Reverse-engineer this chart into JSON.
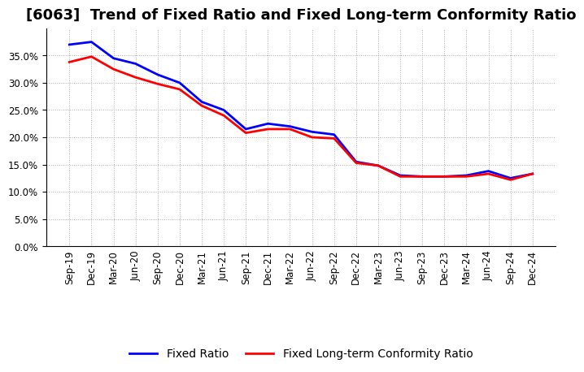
{
  "title": "[6063]  Trend of Fixed Ratio and Fixed Long-term Conformity Ratio",
  "x_labels": [
    "Sep-19",
    "Dec-19",
    "Mar-20",
    "Jun-20",
    "Sep-20",
    "Dec-20",
    "Mar-21",
    "Jun-21",
    "Sep-21",
    "Dec-21",
    "Mar-22",
    "Jun-22",
    "Sep-22",
    "Dec-22",
    "Mar-23",
    "Jun-23",
    "Sep-23",
    "Dec-23",
    "Mar-24",
    "Jun-24",
    "Sep-24",
    "Dec-24"
  ],
  "fixed_ratio": [
    0.37,
    0.375,
    0.345,
    0.335,
    0.315,
    0.3,
    0.265,
    0.25,
    0.215,
    0.225,
    0.22,
    0.21,
    0.205,
    0.155,
    0.148,
    0.13,
    0.128,
    0.128,
    0.13,
    0.138,
    0.125,
    0.133
  ],
  "fixed_lt_ratio": [
    0.338,
    0.348,
    0.325,
    0.31,
    0.298,
    0.288,
    0.258,
    0.24,
    0.208,
    0.215,
    0.215,
    0.2,
    0.198,
    0.153,
    0.148,
    0.128,
    0.128,
    0.128,
    0.128,
    0.133,
    0.122,
    0.133
  ],
  "fixed_ratio_color": "#0000FF",
  "fixed_lt_ratio_color": "#FF0000",
  "background_color": "#FFFFFF",
  "plot_bg_color": "#FFFFFF",
  "grid_color": "#AAAAAA",
  "ylim": [
    0.0,
    0.4
  ],
  "yticks": [
    0.0,
    0.05,
    0.1,
    0.15,
    0.2,
    0.25,
    0.3,
    0.35
  ],
  "legend_fixed_ratio": "Fixed Ratio",
  "legend_fixed_lt_ratio": "Fixed Long-term Conformity Ratio",
  "title_fontsize": 13,
  "tick_fontsize": 8.5,
  "legend_fontsize": 10,
  "line_width": 2.0
}
